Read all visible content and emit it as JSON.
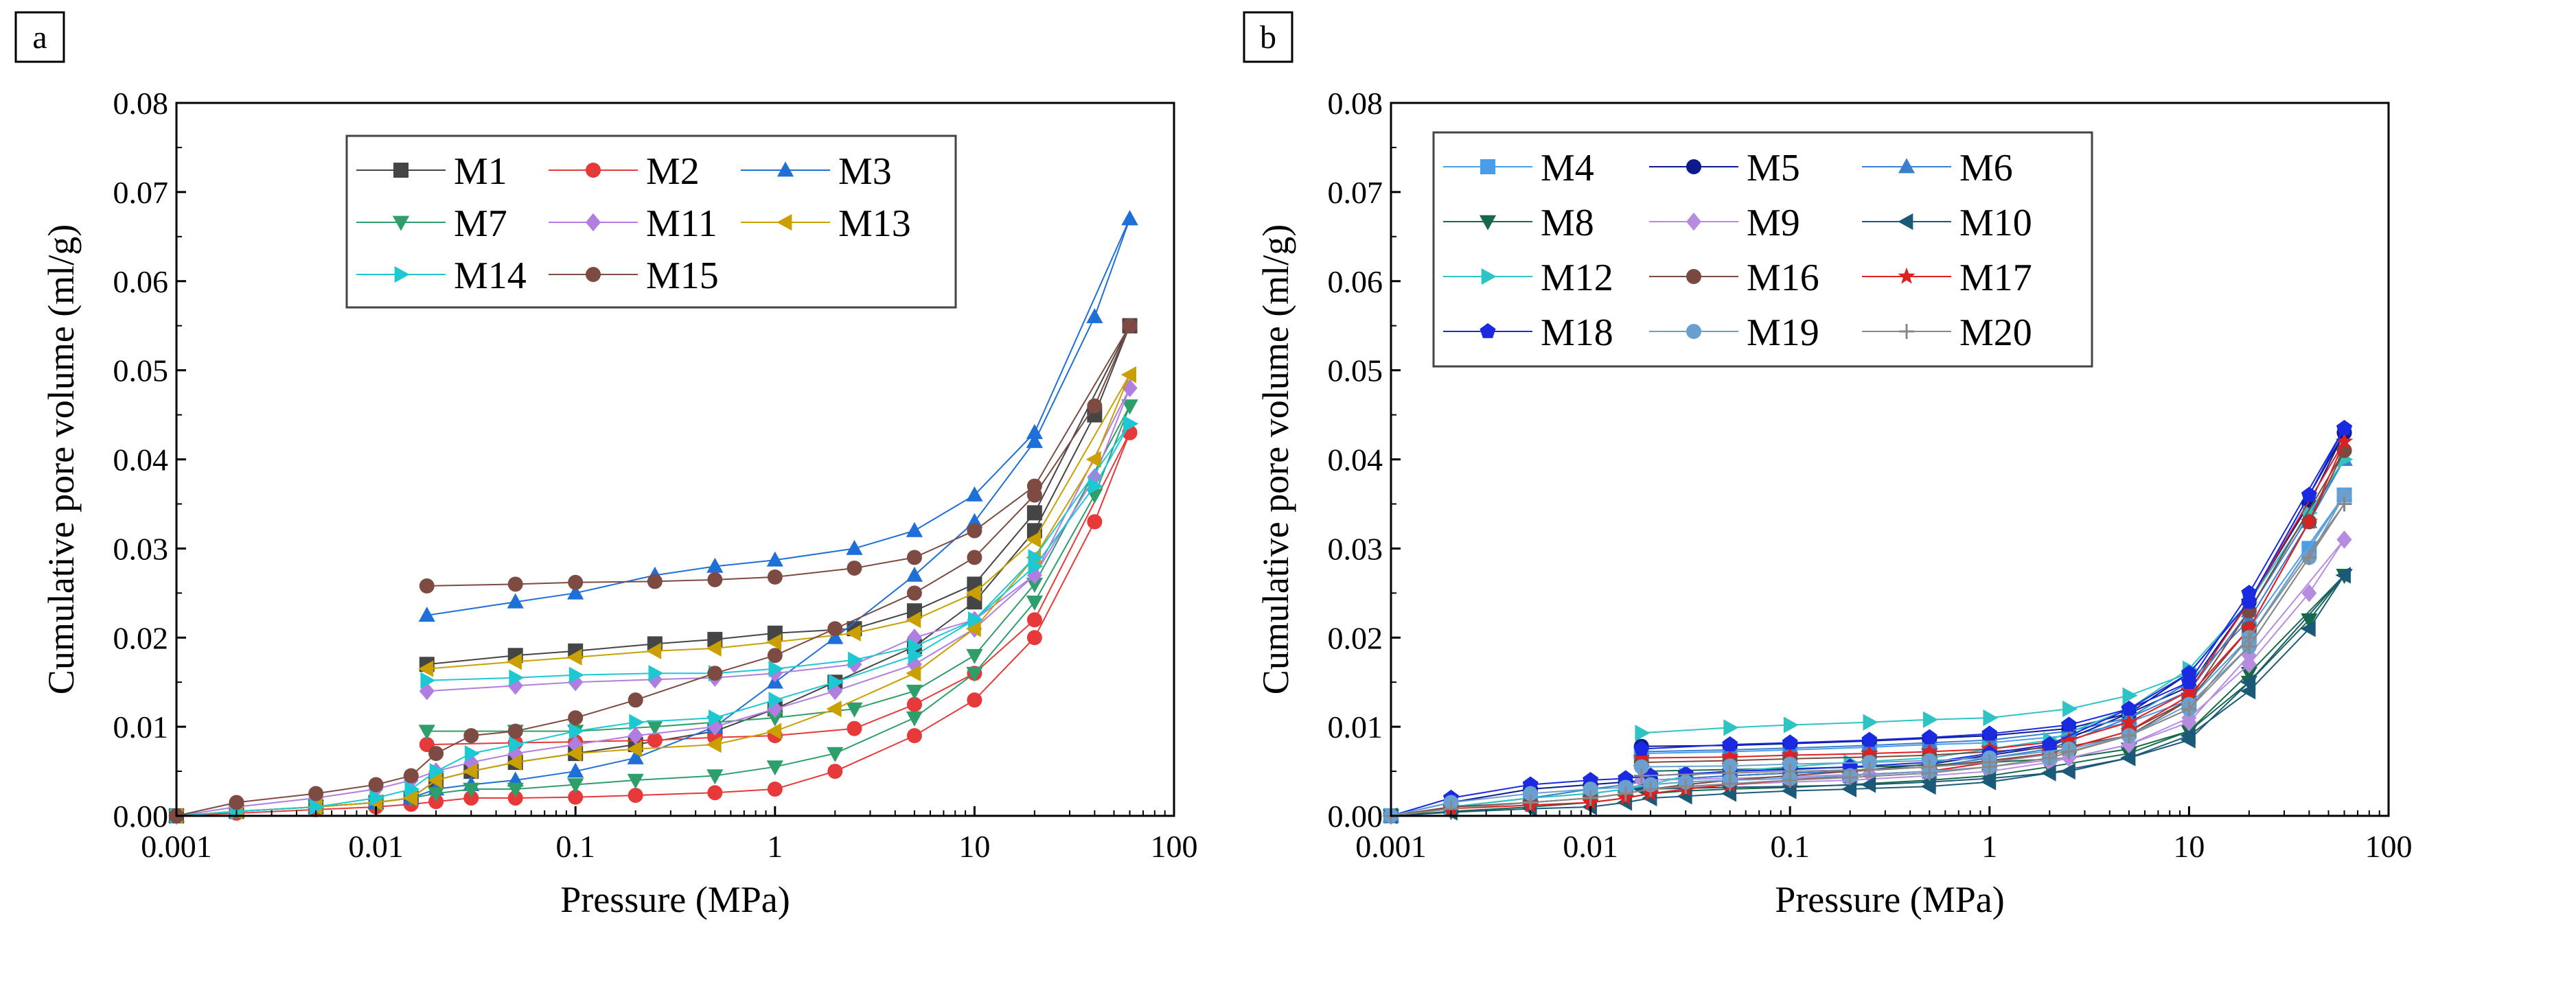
{
  "chart_data": [
    {
      "panel_label": "a",
      "type": "scatter",
      "xlabel": "Pressure (MPa)",
      "ylabel": "Cumulative pore volume (ml/g)",
      "xscale": "log",
      "xlim": [
        0.001,
        100
      ],
      "ylim": [
        0,
        0.08
      ],
      "xticks": [
        "0.001",
        "0.01",
        "0.1",
        "1",
        "10",
        "100"
      ],
      "yticks": [
        "0.00",
        "0.01",
        "0.02",
        "0.03",
        "0.04",
        "0.05",
        "0.06",
        "0.07",
        "0.08"
      ],
      "legend_position": "top-center",
      "intrusion_x": [
        0.001,
        0.002,
        0.005,
        0.01,
        0.015,
        0.02,
        0.03,
        0.05,
        0.1,
        0.2,
        0.5,
        1,
        2,
        5,
        10,
        20,
        40,
        60
      ],
      "extrusion_x": [
        60,
        20,
        10,
        5,
        2.5,
        1,
        0.5,
        0.25,
        0.1,
        0.05,
        0.018
      ],
      "series": [
        {
          "name": "M1",
          "color": "#454545",
          "marker": "square",
          "intrusion": [
            0,
            0.0005,
            0.001,
            0.0015,
            0.002,
            0.004,
            0.005,
            0.006,
            0.007,
            0.008,
            0.0095,
            0.012,
            0.015,
            0.019,
            0.024,
            0.032,
            0.045,
            0.055
          ],
          "extrusion": [
            0.055,
            0.034,
            0.026,
            0.023,
            0.021,
            0.0205,
            0.0198,
            0.0193,
            0.0185,
            0.018,
            0.017
          ]
        },
        {
          "name": "M2",
          "color": "#e8393a",
          "marker": "circle",
          "intrusion": [
            0,
            0.0003,
            0.0007,
            0.001,
            0.0013,
            0.0016,
            0.002,
            0.002,
            0.0021,
            0.0023,
            0.0026,
            0.003,
            0.005,
            0.009,
            0.013,
            0.02,
            0.033,
            0.043
          ],
          "extrusion": [
            0.043,
            0.022,
            0.016,
            0.0125,
            0.0098,
            0.009,
            0.0088,
            0.0085,
            0.0083,
            0.0082,
            0.008
          ]
        },
        {
          "name": "M3",
          "color": "#1f6fd8",
          "marker": "triangle-up",
          "intrusion": [
            0,
            0.0005,
            0.001,
            0.0015,
            0.002,
            0.003,
            0.0035,
            0.004,
            0.005,
            0.0065,
            0.01,
            0.015,
            0.02,
            0.027,
            0.033,
            0.042,
            0.056,
            0.067
          ],
          "extrusion": [
            0.067,
            0.043,
            0.036,
            0.032,
            0.03,
            0.0287,
            0.028,
            0.027,
            0.025,
            0.024,
            0.0225
          ]
        },
        {
          "name": "M7",
          "color": "#2e9e6a",
          "marker": "triangle-down",
          "intrusion": [
            0,
            0.0005,
            0.001,
            0.0015,
            0.002,
            0.0025,
            0.003,
            0.003,
            0.0035,
            0.004,
            0.0045,
            0.0055,
            0.007,
            0.011,
            0.016,
            0.024,
            0.036,
            0.046
          ],
          "extrusion": [
            0.046,
            0.026,
            0.018,
            0.014,
            0.012,
            0.011,
            0.0105,
            0.01,
            0.0095,
            0.0095,
            0.0095
          ]
        },
        {
          "name": "M11",
          "color": "#b07ee0",
          "marker": "diamond",
          "intrusion": [
            0,
            0.001,
            0.002,
            0.003,
            0.004,
            0.005,
            0.006,
            0.007,
            0.008,
            0.009,
            0.01,
            0.012,
            0.014,
            0.017,
            0.021,
            0.027,
            0.038,
            0.048
          ],
          "extrusion": [
            0.048,
            0.027,
            0.022,
            0.02,
            0.017,
            0.016,
            0.0155,
            0.0153,
            0.015,
            0.0146,
            0.014
          ]
        },
        {
          "name": "M13",
          "color": "#c9a000",
          "marker": "triangle-left",
          "intrusion": [
            0,
            0.0005,
            0.001,
            0.0015,
            0.002,
            0.004,
            0.005,
            0.006,
            0.007,
            0.0075,
            0.008,
            0.0095,
            0.012,
            0.016,
            0.021,
            0.029,
            0.04,
            0.0495
          ],
          "extrusion": [
            0.0495,
            0.031,
            0.025,
            0.022,
            0.0205,
            0.0195,
            0.0188,
            0.0185,
            0.0178,
            0.0173,
            0.0165
          ]
        },
        {
          "name": "M14",
          "color": "#1ec8d2",
          "marker": "triangle-right",
          "intrusion": [
            0,
            0.0005,
            0.001,
            0.002,
            0.003,
            0.005,
            0.007,
            0.008,
            0.0095,
            0.0105,
            0.011,
            0.013,
            0.015,
            0.018,
            0.022,
            0.028,
            0.037,
            0.044
          ],
          "extrusion": [
            0.044,
            0.029,
            0.022,
            0.019,
            0.0175,
            0.0165,
            0.016,
            0.016,
            0.0158,
            0.0155,
            0.0152
          ]
        },
        {
          "name": "M15",
          "color": "#7d4b42",
          "marker": "circle",
          "intrusion": [
            0,
            0.0015,
            0.0025,
            0.0035,
            0.0045,
            0.007,
            0.009,
            0.0095,
            0.011,
            0.013,
            0.016,
            0.018,
            0.021,
            0.025,
            0.029,
            0.036,
            0.046,
            0.055
          ],
          "extrusion": [
            0.055,
            0.037,
            0.032,
            0.029,
            0.0278,
            0.0268,
            0.0265,
            0.0263,
            0.0262,
            0.026,
            0.0258
          ]
        }
      ]
    },
    {
      "panel_label": "b",
      "type": "scatter",
      "xlabel": "Pressure (MPa)",
      "ylabel": "Cumulative pore volume (ml/g)",
      "xscale": "log",
      "xlim": [
        0.001,
        100
      ],
      "ylim": [
        0,
        0.08
      ],
      "xticks": [
        "0.001",
        "0.01",
        "0.1",
        "1",
        "10",
        "100"
      ],
      "yticks": [
        "0.00",
        "0.01",
        "0.02",
        "0.03",
        "0.04",
        "0.05",
        "0.06",
        "0.07",
        "0.08"
      ],
      "legend_position": "top-left",
      "intrusion_x": [
        0.001,
        0.002,
        0.005,
        0.01,
        0.015,
        0.02,
        0.03,
        0.05,
        0.1,
        0.2,
        0.5,
        1,
        2,
        5,
        10,
        20,
        40,
        60
      ],
      "extrusion_x": [
        60,
        20,
        10,
        5,
        2.5,
        1,
        0.5,
        0.25,
        0.1,
        0.05,
        0.018
      ],
      "series": [
        {
          "name": "M4",
          "color": "#4a9ee8",
          "marker": "square",
          "intrusion": [
            0,
            0.001,
            0.002,
            0.0025,
            0.003,
            0.0035,
            0.0038,
            0.004,
            0.0042,
            0.0045,
            0.005,
            0.006,
            0.007,
            0.0095,
            0.013,
            0.02,
            0.03,
            0.036
          ],
          "extrusion": [
            0.036,
            0.021,
            0.013,
            0.0105,
            0.009,
            0.0082,
            0.008,
            0.0077,
            0.0074,
            0.0072,
            0.007
          ]
        },
        {
          "name": "M5",
          "color": "#0b1a8c",
          "marker": "circle",
          "intrusion": [
            0,
            0.0015,
            0.003,
            0.0035,
            0.0038,
            0.004,
            0.0042,
            0.0045,
            0.0048,
            0.005,
            0.0058,
            0.0068,
            0.0078,
            0.0115,
            0.016,
            0.024,
            0.035,
            0.043
          ],
          "extrusion": [
            0.043,
            0.024,
            0.0145,
            0.0115,
            0.0098,
            0.009,
            0.0087,
            0.0084,
            0.0081,
            0.0079,
            0.0078
          ]
        },
        {
          "name": "M6",
          "color": "#3a7fd0",
          "marker": "triangle-up",
          "intrusion": [
            0,
            0.001,
            0.002,
            0.003,
            0.0035,
            0.004,
            0.0042,
            0.0045,
            0.0048,
            0.005,
            0.0055,
            0.0065,
            0.0075,
            0.011,
            0.015,
            0.022,
            0.033,
            0.04
          ],
          "extrusion": [
            0.04,
            0.023,
            0.014,
            0.011,
            0.0095,
            0.0085,
            0.0082,
            0.0079,
            0.0076,
            0.0074,
            0.0072
          ]
        },
        {
          "name": "M8",
          "color": "#17694a",
          "marker": "triangle-down",
          "intrusion": [
            0,
            0.0005,
            0.001,
            0.0015,
            0.002,
            0.0025,
            0.0028,
            0.003,
            0.0032,
            0.0035,
            0.004,
            0.0045,
            0.0055,
            0.007,
            0.0095,
            0.015,
            0.022,
            0.027
          ],
          "extrusion": [
            0.027,
            0.016,
            0.0095,
            0.0075,
            0.0065,
            0.006,
            0.0057,
            0.0055,
            0.0053,
            0.0052,
            0.005
          ]
        },
        {
          "name": "M9",
          "color": "#b58ce0",
          "marker": "diamond",
          "intrusion": [
            0,
            0.0008,
            0.0015,
            0.002,
            0.0025,
            0.003,
            0.0032,
            0.0035,
            0.0038,
            0.004,
            0.0045,
            0.005,
            0.006,
            0.008,
            0.011,
            0.017,
            0.025,
            0.031
          ],
          "extrusion": [
            0.031,
            0.018,
            0.0105,
            0.008,
            0.0065,
            0.0055,
            0.005,
            0.0047,
            0.0044,
            0.0042,
            0.004
          ]
        },
        {
          "name": "M10",
          "color": "#1a5a78",
          "marker": "triangle-left",
          "intrusion": [
            0,
            0.0004,
            0.0008,
            0.001,
            0.0015,
            0.002,
            0.0022,
            0.0025,
            0.0028,
            0.003,
            0.0033,
            0.0038,
            0.0048,
            0.0065,
            0.009,
            0.014,
            0.021,
            0.027
          ],
          "extrusion": [
            0.027,
            0.015,
            0.0085,
            0.0065,
            0.005,
            0.0042,
            0.0038,
            0.0035,
            0.0033,
            0.0032,
            0.003
          ]
        },
        {
          "name": "M12",
          "color": "#2ec4c4",
          "marker": "triangle-right",
          "intrusion": [
            0,
            0.001,
            0.002,
            0.0025,
            0.003,
            0.0035,
            0.0045,
            0.005,
            0.0055,
            0.006,
            0.0065,
            0.0075,
            0.0085,
            0.012,
            0.0165,
            0.024,
            0.034,
            0.04
          ],
          "extrusion": [
            0.04,
            0.024,
            0.016,
            0.0135,
            0.012,
            0.011,
            0.0108,
            0.0105,
            0.0102,
            0.0099,
            0.0093
          ]
        },
        {
          "name": "M16",
          "color": "#7a4a40",
          "marker": "circle",
          "intrusion": [
            0,
            0.001,
            0.0015,
            0.002,
            0.0025,
            0.003,
            0.0035,
            0.004,
            0.0045,
            0.005,
            0.0055,
            0.0062,
            0.007,
            0.0095,
            0.013,
            0.021,
            0.033,
            0.041
          ],
          "extrusion": [
            0.041,
            0.023,
            0.013,
            0.009,
            0.0078,
            0.0072,
            0.0068,
            0.0066,
            0.0064,
            0.0062,
            0.006
          ]
        },
        {
          "name": "M17",
          "color": "#e02020",
          "marker": "star",
          "intrusion": [
            0,
            0.0008,
            0.0012,
            0.0015,
            0.002,
            0.0025,
            0.003,
            0.0035,
            0.004,
            0.0045,
            0.005,
            0.006,
            0.007,
            0.0095,
            0.0135,
            0.021,
            0.033,
            0.042
          ],
          "extrusion": [
            0.042,
            0.024,
            0.014,
            0.0105,
            0.0085,
            0.0075,
            0.0072,
            0.007,
            0.0068,
            0.0066,
            0.0065
          ]
        },
        {
          "name": "M18",
          "color": "#1a2ae0",
          "marker": "pentagon",
          "intrusion": [
            0,
            0.002,
            0.0035,
            0.004,
            0.0042,
            0.0045,
            0.0047,
            0.005,
            0.0052,
            0.0055,
            0.006,
            0.007,
            0.008,
            0.012,
            0.016,
            0.024,
            0.036,
            0.0435
          ],
          "extrusion": [
            0.0435,
            0.025,
            0.015,
            0.012,
            0.0102,
            0.0092,
            0.0088,
            0.0085,
            0.0082,
            0.008,
            0.0075
          ]
        },
        {
          "name": "M19",
          "color": "#6aa0d0",
          "marker": "circle",
          "intrusion": [
            0,
            0.0015,
            0.0025,
            0.003,
            0.0032,
            0.0035,
            0.0038,
            0.004,
            0.0042,
            0.0045,
            0.005,
            0.0055,
            0.0065,
            0.009,
            0.0125,
            0.019,
            0.029,
            0.036
          ],
          "extrusion": [
            0.036,
            0.02,
            0.012,
            0.009,
            0.0075,
            0.0065,
            0.0062,
            0.006,
            0.0058,
            0.0056,
            0.0055
          ]
        },
        {
          "name": "M20",
          "color": "#888888",
          "marker": "plus",
          "intrusion": [
            0,
            0.0008,
            0.0015,
            0.002,
            0.0025,
            0.003,
            0.0033,
            0.0036,
            0.004,
            0.0043,
            0.0048,
            0.0055,
            0.0065,
            0.009,
            0.012,
            0.019,
            0.029,
            0.035
          ],
          "extrusion": [
            0.035,
            0.02,
            0.012,
            0.009,
            0.0072,
            0.006,
            0.0055,
            0.0052,
            0.005,
            0.0048,
            0.0045
          ]
        }
      ]
    }
  ]
}
